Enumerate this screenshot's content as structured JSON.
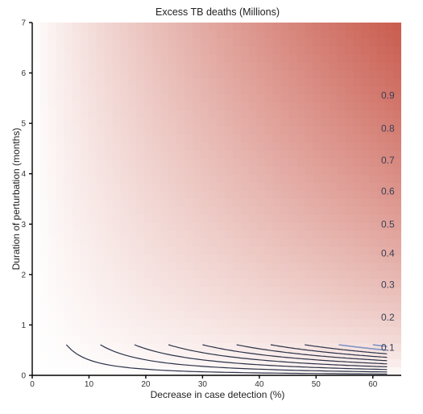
{
  "chart_data": {
    "type": "contour",
    "title": "Excess TB deaths (Millions)",
    "xlabel": "Decrease in case detection (%)",
    "ylabel": "Duration of perturbation (months)",
    "xlim": [
      0,
      65
    ],
    "ylim": [
      0,
      7
    ],
    "xticks": [
      "0",
      "10",
      "20",
      "30",
      "40",
      "50",
      "60"
    ],
    "yticks": [
      "0",
      "1",
      "2",
      "3",
      "4",
      "5",
      "6",
      "7"
    ],
    "grid": false,
    "fill_colors": {
      "low": "#ffffff",
      "high": "#c95b4e"
    },
    "line_color": "#2b3147",
    "contours": [
      {
        "label": "0.1",
        "level": 0.1,
        "label_y": 0.55
      },
      {
        "label": "0.2",
        "level": 0.2,
        "label_y": 1.15
      },
      {
        "label": "0.3",
        "level": 0.3,
        "label_y": 1.8
      },
      {
        "label": "0.4",
        "level": 0.4,
        "label_y": 2.42
      },
      {
        "label": "0.5",
        "level": 0.5,
        "label_y": 3.0
      },
      {
        "label": "0.6",
        "level": 0.6,
        "label_y": 3.65
      },
      {
        "label": "0.7",
        "level": 0.7,
        "label_y": 4.27
      },
      {
        "label": "0.8",
        "level": 0.8,
        "label_y": 4.9
      },
      {
        "label": "0.9",
        "level": 0.9,
        "label_y": 5.55
      },
      {
        "label": "",
        "level": 1.0,
        "label_y": null
      },
      {
        "label": "",
        "level": 1.1,
        "label_y": null
      }
    ],
    "contour_x_start": 6,
    "contour_x_end": 62.5,
    "contour_y_max": 6.6
  }
}
